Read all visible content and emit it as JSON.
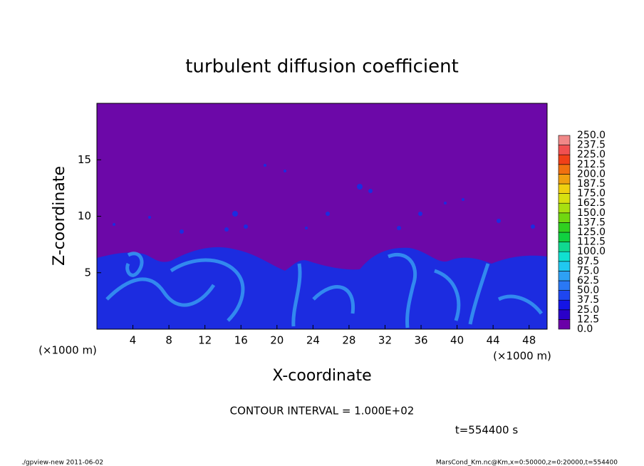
{
  "chart_data": {
    "type": "contour",
    "title": "turbulent diffusion coefficient",
    "xlabel": "X-coordinate",
    "ylabel": "Z-coordinate",
    "x_unit_left": "(×1000 m)",
    "x_unit_right": "(×1000 m)",
    "xlim": [
      0,
      50
    ],
    "ylim": [
      0,
      20
    ],
    "xticks": [
      4,
      8,
      12,
      16,
      20,
      24,
      28,
      32,
      36,
      40,
      44,
      48
    ],
    "yticks": [
      5,
      10,
      15
    ],
    "colorbar": {
      "levels": [
        {
          "value": 0,
          "label": "0.0"
        },
        {
          "value": 12.5,
          "label": "12.5"
        },
        {
          "value": 25,
          "label": "25.0"
        },
        {
          "value": 37.5,
          "label": "37.5"
        },
        {
          "value": 50,
          "label": "50.0"
        },
        {
          "value": 62.5,
          "label": "62.5"
        },
        {
          "value": 75,
          "label": "75.0"
        },
        {
          "value": 87.5,
          "label": "87.5"
        },
        {
          "value": 100,
          "label": "100.0"
        },
        {
          "value": 112.5,
          "label": "112.5"
        },
        {
          "value": 125,
          "label": "125.0"
        },
        {
          "value": 137.5,
          "label": "137.5"
        },
        {
          "value": 150,
          "label": "150.0"
        },
        {
          "value": 162.5,
          "label": "162.5"
        },
        {
          "value": 175,
          "label": "175.0"
        },
        {
          "value": 187.5,
          "label": "187.5"
        },
        {
          "value": 200,
          "label": "200.0"
        },
        {
          "value": 212.5,
          "label": "212.5"
        },
        {
          "value": 225,
          "label": "225.0"
        },
        {
          "value": 237.5,
          "label": "237.5"
        },
        {
          "value": 250,
          "label": "250.0"
        }
      ],
      "colors": [
        "#6a00a8",
        "#2a00c8",
        "#1414e6",
        "#1e46f0",
        "#2a78f5",
        "#2ea0f5",
        "#20c8f0",
        "#10e0d0",
        "#10d890",
        "#10d040",
        "#30d020",
        "#70d810",
        "#a8e010",
        "#d8e010",
        "#f0d010",
        "#f0a010",
        "#f07010",
        "#f04018",
        "#f05050",
        "#f08888"
      ]
    },
    "contour_interval": "CONTOUR INTERVAL = 1.000E+02",
    "time_label": "t=554400 s",
    "footer_left": "./gpview-new   2011-06-02",
    "footer_right": "MarsCond_Km.nc@Km,x=0:50000,z=0:20000,t=554400"
  }
}
